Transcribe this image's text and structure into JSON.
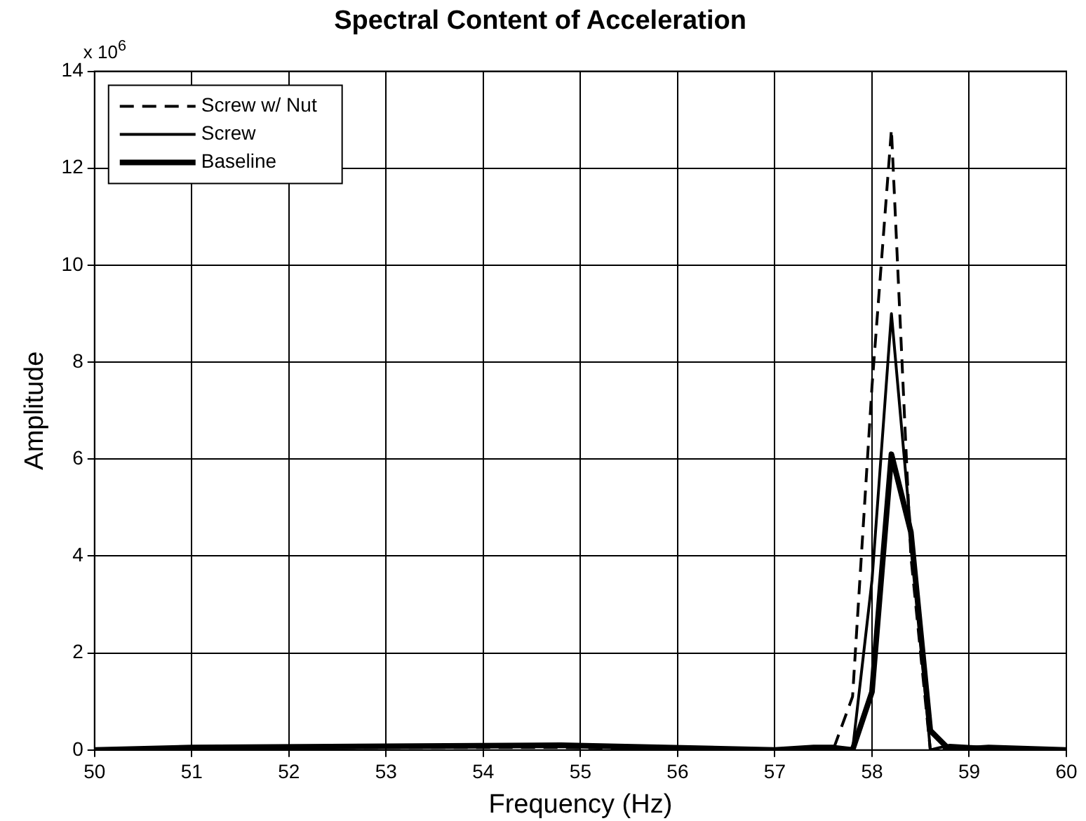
{
  "chart_data": {
    "type": "line",
    "title": "Spectral Content of Acceleration",
    "xlabel": "Frequency (Hz)",
    "ylabel": "Amplitude",
    "annotations": [
      "x 10$^{6}$"
    ],
    "xlim": [
      50,
      60
    ],
    "xticks": [
      50,
      51,
      52,
      53,
      54,
      55,
      56,
      57,
      58,
      59,
      60
    ],
    "ylim": [
      0,
      14
    ],
    "yticks": [
      0,
      2,
      4,
      6,
      8,
      10,
      12,
      14
    ],
    "grid": true,
    "legend": "top left",
    "marker": "none",
    "series": [
      {
        "name": "Screw w/ Nut",
        "color": "#000000",
        "line_style": "dashed",
        "x": [
          50,
          51,
          54.8,
          57,
          57.4,
          57.6,
          57.8,
          58,
          58.2,
          58.4,
          58.6,
          58.8,
          59.2,
          60
        ],
        "values": [
          0,
          0.05,
          0.05,
          0,
          0,
          0,
          1.1,
          7.5,
          12.8,
          4,
          0,
          0.05,
          0,
          0
        ]
      },
      {
        "name": "Screw",
        "color": "#000000",
        "line_style": "solid",
        "x": [
          50,
          51,
          54.8,
          57,
          57.4,
          57.6,
          57.8,
          58,
          58.2,
          58.4,
          58.6,
          58.8,
          59.2,
          60
        ],
        "values": [
          0,
          0.05,
          0.1,
          0,
          0.05,
          0.05,
          0,
          3.5,
          9,
          4.5,
          0,
          0.1,
          0.05,
          0
        ]
      },
      {
        "name": "Baseline",
        "color": "#000000",
        "line_style": "solid",
        "x": [
          50,
          51,
          54.8,
          57,
          57.4,
          57.6,
          57.8,
          58,
          58.2,
          58.4,
          58.6,
          58.8,
          59.2,
          60
        ],
        "values": [
          0,
          0.05,
          0.1,
          0,
          0.05,
          0.05,
          0,
          1.2,
          6.1,
          4.5,
          0.4,
          0,
          0.05,
          0
        ]
      }
    ]
  }
}
